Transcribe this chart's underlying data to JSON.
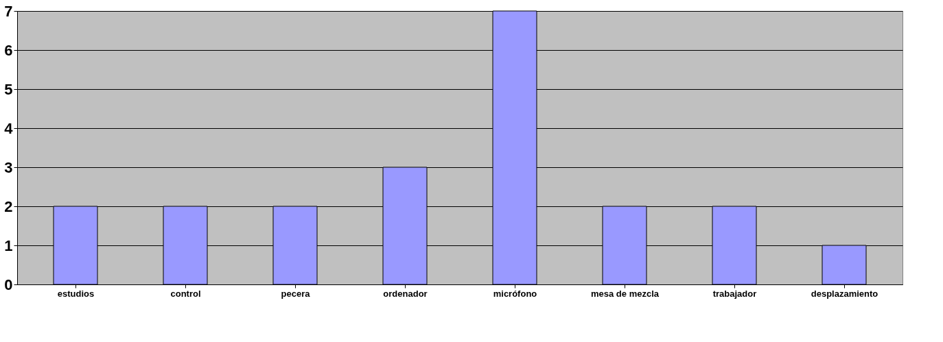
{
  "chart_data": {
    "type": "bar",
    "categories": [
      "estudios",
      "control",
      "pecera",
      "ordenador",
      "micrófono",
      "mesa de mezcla",
      "trabajador",
      "desplazamiento"
    ],
    "values": [
      2,
      2,
      2,
      3,
      7,
      2,
      2,
      1
    ],
    "color": "#9999ff",
    "ylim": [
      0,
      7
    ],
    "yticks": [
      0,
      1,
      2,
      3,
      4,
      5,
      6,
      7
    ],
    "grid": "y"
  }
}
